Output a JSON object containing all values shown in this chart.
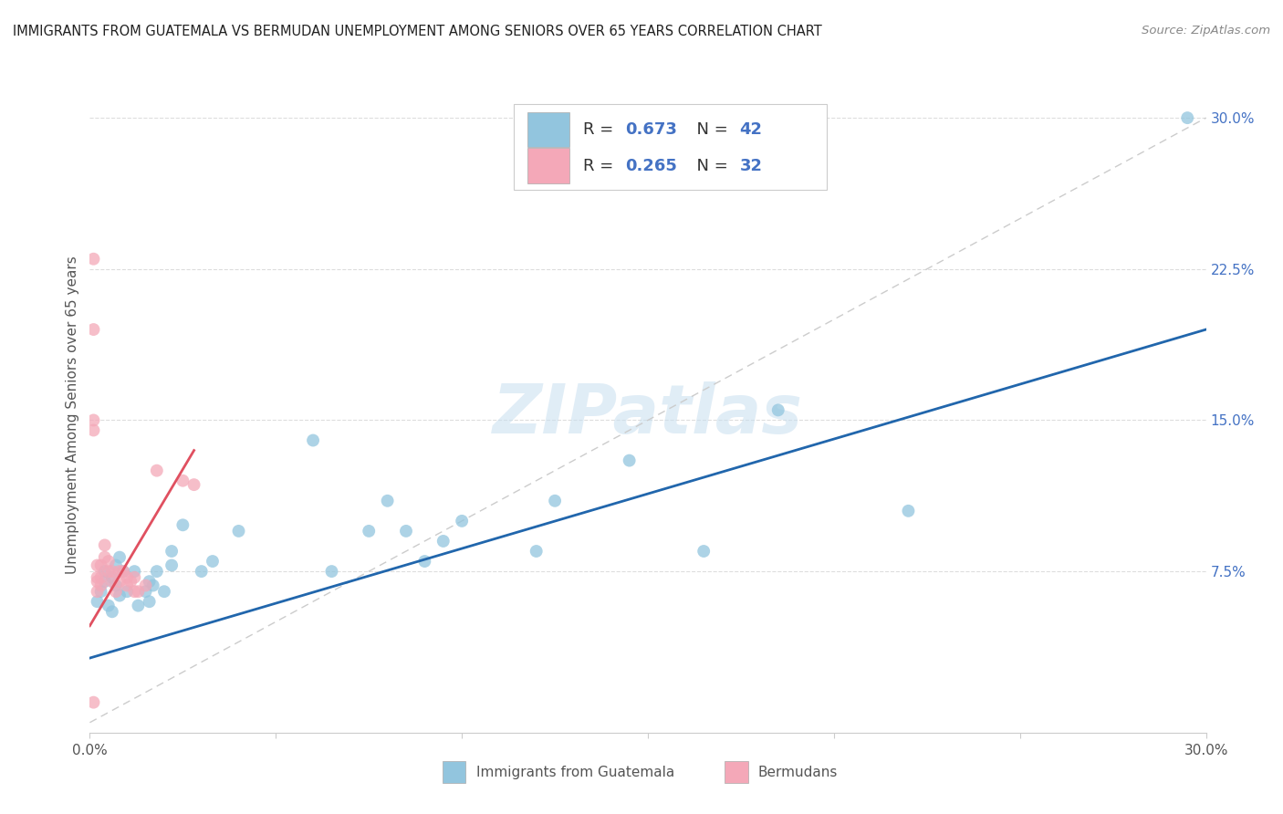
{
  "title": "IMMIGRANTS FROM GUATEMALA VS BERMUDAN UNEMPLOYMENT AMONG SENIORS OVER 65 YEARS CORRELATION CHART",
  "source": "Source: ZipAtlas.com",
  "ylabel": "Unemployment Among Seniors over 65 years",
  "xlim": [
    0,
    0.3
  ],
  "ylim": [
    -0.005,
    0.31
  ],
  "yticks_right": [
    0.075,
    0.15,
    0.225,
    0.3
  ],
  "ytick_labels_right": [
    "7.5%",
    "15.0%",
    "22.5%",
    "30.0%"
  ],
  "blue_color": "#92c5de",
  "pink_color": "#f4a8b8",
  "blue_line_color": "#2166ac",
  "pink_line_color": "#e05060",
  "legend_label1": "Immigrants from Guatemala",
  "legend_label2": "Bermudans",
  "watermark": "ZIPatlas",
  "blue_scatter_x": [
    0.002,
    0.003,
    0.004,
    0.004,
    0.005,
    0.006,
    0.006,
    0.007,
    0.007,
    0.008,
    0.008,
    0.009,
    0.01,
    0.012,
    0.013,
    0.015,
    0.016,
    0.016,
    0.017,
    0.018,
    0.02,
    0.022,
    0.022,
    0.025,
    0.03,
    0.033,
    0.04,
    0.06,
    0.065,
    0.075,
    0.08,
    0.085,
    0.09,
    0.095,
    0.1,
    0.12,
    0.125,
    0.145,
    0.165,
    0.185,
    0.22,
    0.295
  ],
  "blue_scatter_y": [
    0.06,
    0.065,
    0.07,
    0.075,
    0.058,
    0.072,
    0.055,
    0.068,
    0.078,
    0.063,
    0.082,
    0.075,
    0.065,
    0.075,
    0.058,
    0.065,
    0.06,
    0.07,
    0.068,
    0.075,
    0.065,
    0.085,
    0.078,
    0.098,
    0.075,
    0.08,
    0.095,
    0.14,
    0.075,
    0.095,
    0.11,
    0.095,
    0.08,
    0.09,
    0.1,
    0.085,
    0.11,
    0.13,
    0.085,
    0.155,
    0.105,
    0.3
  ],
  "pink_scatter_x": [
    0.001,
    0.001,
    0.001,
    0.001,
    0.001,
    0.002,
    0.002,
    0.002,
    0.002,
    0.003,
    0.003,
    0.003,
    0.004,
    0.004,
    0.005,
    0.005,
    0.006,
    0.006,
    0.007,
    0.008,
    0.008,
    0.009,
    0.01,
    0.01,
    0.011,
    0.012,
    0.012,
    0.013,
    0.015,
    0.018,
    0.025,
    0.028
  ],
  "pink_scatter_y": [
    0.23,
    0.195,
    0.15,
    0.145,
    0.01,
    0.078,
    0.072,
    0.07,
    0.065,
    0.078,
    0.072,
    0.068,
    0.088,
    0.082,
    0.08,
    0.075,
    0.075,
    0.07,
    0.065,
    0.075,
    0.07,
    0.075,
    0.072,
    0.068,
    0.07,
    0.072,
    0.065,
    0.065,
    0.068,
    0.125,
    0.12,
    0.118
  ],
  "blue_trend_x": [
    0.0,
    0.3
  ],
  "blue_trend_y": [
    0.032,
    0.195
  ],
  "pink_trend_x": [
    0.0,
    0.028
  ],
  "pink_trend_y": [
    0.048,
    0.135
  ],
  "diag_line_x": [
    0.0,
    0.3
  ],
  "diag_line_y": [
    0.0,
    0.3
  ]
}
